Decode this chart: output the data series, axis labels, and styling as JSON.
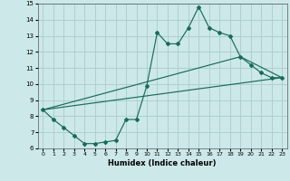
{
  "xlabel": "Humidex (Indice chaleur)",
  "ylabel": "",
  "xlim": [
    -0.5,
    23.5
  ],
  "ylim": [
    6,
    15
  ],
  "xticks": [
    0,
    1,
    2,
    3,
    4,
    5,
    6,
    7,
    8,
    9,
    10,
    11,
    12,
    13,
    14,
    15,
    16,
    17,
    18,
    19,
    20,
    21,
    22,
    23
  ],
  "yticks": [
    6,
    7,
    8,
    9,
    10,
    11,
    12,
    13,
    14,
    15
  ],
  "bg_color": "#cce8e8",
  "line_color": "#1a6b5a",
  "grid_color": "#aacccc",
  "line1_x": [
    0,
    1,
    2,
    3,
    4,
    5,
    6,
    7,
    8,
    9,
    10,
    11,
    12,
    13,
    14,
    15,
    16,
    17,
    18,
    19,
    20,
    21,
    22,
    23
  ],
  "line1_y": [
    8.4,
    7.8,
    7.3,
    6.8,
    6.3,
    6.3,
    6.4,
    6.5,
    7.8,
    7.8,
    9.9,
    13.2,
    12.5,
    12.5,
    13.5,
    14.8,
    13.5,
    13.2,
    13.0,
    11.7,
    11.2,
    10.7,
    10.4,
    10.4
  ],
  "line2_x": [
    0,
    23
  ],
  "line2_y": [
    8.4,
    10.4
  ],
  "line3_x": [
    0,
    19,
    23
  ],
  "line3_y": [
    8.4,
    11.7,
    10.4
  ]
}
